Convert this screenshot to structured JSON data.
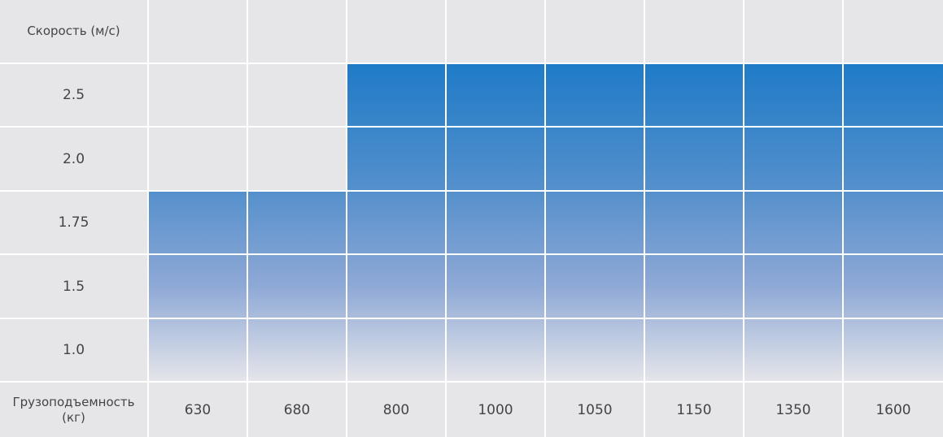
{
  "table": {
    "row_label": "Скорость (м/с)",
    "column_label": [
      "Грузоподъемность",
      "(кг)"
    ],
    "columns": [
      "630",
      "680",
      "800",
      "1000",
      "1050",
      "1150",
      "1350",
      "1600"
    ],
    "rows": [
      {
        "speed": "2.5",
        "available": [
          false,
          false,
          true,
          true,
          true,
          true,
          true,
          true
        ]
      },
      {
        "speed": "2.0",
        "available": [
          false,
          false,
          true,
          true,
          true,
          true,
          true,
          true
        ]
      },
      {
        "speed": "1.75",
        "available": [
          true,
          true,
          true,
          true,
          true,
          true,
          true,
          true
        ]
      },
      {
        "speed": "1.5",
        "available": [
          true,
          true,
          true,
          true,
          true,
          true,
          true,
          true
        ]
      },
      {
        "speed": "1.0",
        "available": [
          true,
          true,
          true,
          true,
          true,
          true,
          true,
          true
        ]
      }
    ]
  }
}
